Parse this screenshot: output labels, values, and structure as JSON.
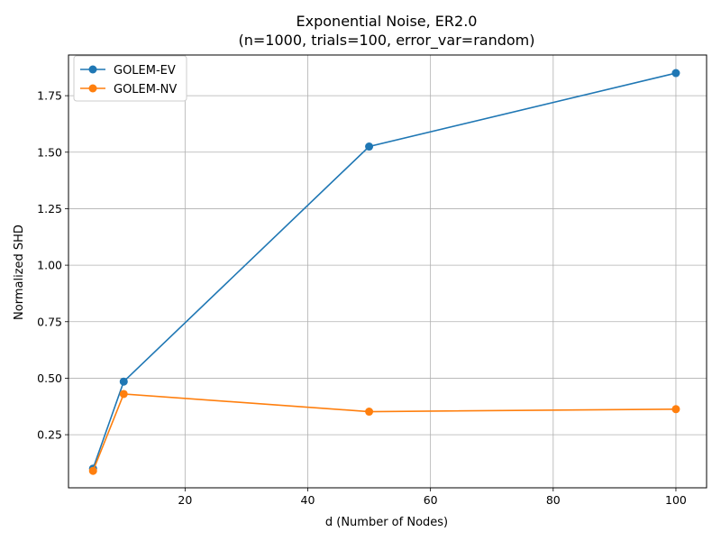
{
  "chart_data": {
    "type": "line",
    "title": "Exponential Noise, ER2.0",
    "subtitle": "(n=1000, trials=100, error_var=random)",
    "xlabel": "d (Number of Nodes)",
    "ylabel": "Normalized SHD",
    "x": [
      5,
      10,
      50,
      100
    ],
    "xlim": [
      1,
      105
    ],
    "ylim": [
      0.015,
      1.93
    ],
    "xticks": [
      20,
      40,
      60,
      80,
      100
    ],
    "yticks": [
      0.25,
      0.5,
      0.75,
      1.0,
      1.25,
      1.5,
      1.75
    ],
    "ytick_labels": [
      "0.25",
      "0.50",
      "0.75",
      "1.00",
      "1.25",
      "1.50",
      "1.75"
    ],
    "grid": true,
    "legend_position": "top-left",
    "series": [
      {
        "name": "GOLEM-EV",
        "color": "#1f77b4",
        "values": [
          0.1,
          0.485,
          1.525,
          1.85
        ]
      },
      {
        "name": "GOLEM-NV",
        "color": "#ff7f0e",
        "values": [
          0.09,
          0.43,
          0.352,
          0.363
        ]
      }
    ]
  }
}
